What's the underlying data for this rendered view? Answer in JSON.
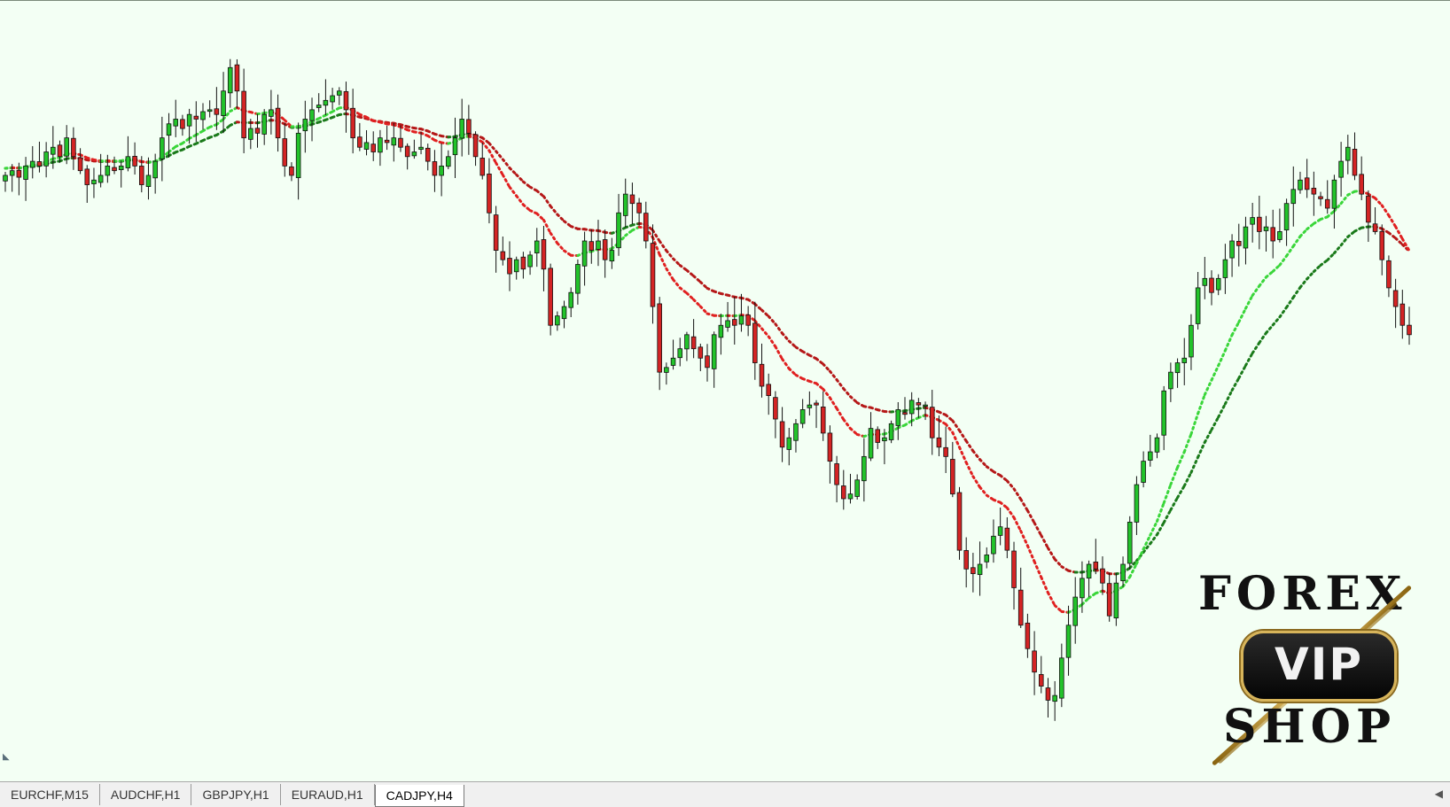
{
  "tabs": [
    {
      "label": "EURCHF,M15",
      "active": false
    },
    {
      "label": "AUDCHF,H1",
      "active": false
    },
    {
      "label": "GBPJPY,H1",
      "active": false
    },
    {
      "label": "EURAUD,H1",
      "active": false
    },
    {
      "label": "CADJPY,H4",
      "active": true
    }
  ],
  "logo": {
    "line1": "FOREX",
    "badge": "VIP",
    "line2": "SHOP"
  },
  "colors": {
    "background": "#f3fff4",
    "bull_candle": "#22c32a",
    "bear_candle": "#d42424",
    "fast_ma_up": "#3ad63a",
    "slow_ma_up": "#1a7a1a",
    "fast_ma_down": "#e02020",
    "slow_ma_down": "#b51818"
  },
  "chart_data": {
    "type": "candlestick",
    "symbol": "CADJPY",
    "timeframe": "H4",
    "close_series": [
      100,
      100.5,
      99.8,
      101,
      101.5,
      101,
      102.5,
      103,
      102,
      104,
      102,
      100.5,
      99,
      99.5,
      100,
      101,
      100.5,
      101,
      102,
      101,
      99,
      100,
      101.5,
      104,
      105.5,
      106,
      105,
      106.5,
      106,
      106.8,
      107,
      106.5,
      109,
      111.5,
      109,
      104,
      105,
      104.5,
      106.5,
      107,
      104,
      101,
      100,
      104.5,
      106,
      107,
      107.5,
      108,
      108.5,
      109,
      107,
      104,
      103,
      103.5,
      102.5,
      104,
      103.5,
      104,
      103,
      102,
      102.5,
      103,
      101.5,
      100,
      101,
      102,
      104,
      106,
      104.5,
      102,
      100,
      96,
      92,
      91,
      89.5,
      91,
      90,
      91.5,
      93,
      90,
      84,
      85,
      86,
      87.5,
      90.5,
      93,
      92,
      93,
      91,
      92,
      96,
      98,
      97,
      96,
      93,
      86,
      79,
      79.5,
      80.5,
      81.5,
      83,
      81.5,
      80.5,
      79.5,
      83,
      84,
      84.5,
      84,
      85,
      84,
      80,
      77.5,
      76.5,
      74,
      71,
      72,
      73.5,
      75,
      75.5,
      75.5,
      72.5,
      69.5,
      67,
      65.5,
      66,
      67.5,
      70,
      73,
      71.5,
      72,
      73.5,
      75,
      74.5,
      76,
      75.5,
      75.5,
      72,
      71,
      70,
      66,
      60,
      58,
      57.5,
      58.5,
      59.5,
      61.5,
      62.5,
      60,
      56,
      52,
      49.5,
      47,
      45.5,
      44,
      44.5,
      48.5,
      52,
      55,
      57,
      58.5,
      58,
      56.5,
      53,
      56.5,
      58.5,
      63,
      67,
      69.5,
      70.5,
      72,
      77,
      79,
      80,
      80.5,
      84,
      88,
      89,
      87.5,
      89,
      91,
      93,
      92.5,
      94.5,
      95.5,
      94,
      94.5,
      93,
      94,
      97,
      98.5,
      99.5,
      98.5,
      98,
      97.5,
      96.5,
      99.5,
      101.5,
      103,
      100,
      98,
      95,
      94,
      91,
      88,
      86,
      84,
      83
    ]
  }
}
